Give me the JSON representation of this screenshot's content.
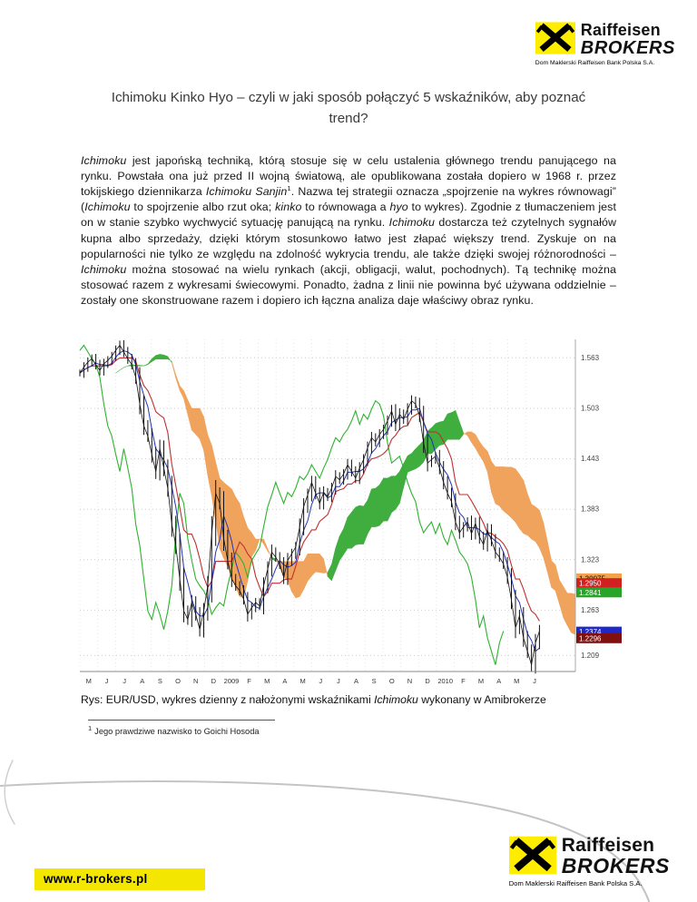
{
  "header": {
    "brand_name": "Raiffeisen",
    "brand_sub": "BROKERS",
    "brand_tagline": "Dom Maklerski Raiffeisen Bank Polska S.A."
  },
  "title": "Ichimoku Kinko Hyo – czyli w jaki sposób połączyć 5 wskaźników, aby poznać trend?",
  "body": {
    "segments": [
      {
        "t": "Ichimoku",
        "i": true
      },
      {
        "t": " jest japońską techniką, którą stosuje się w celu ustalenia głównego trendu panującego na rynku. Powstała ona już przed II wojną światową, ale opublikowana została dopiero w 1968 r. przez tokijskiego dziennikarza "
      },
      {
        "t": "Ichimoku Sanjin",
        "i": true
      },
      {
        "t": "1",
        "sup": true
      },
      {
        "t": ". Nazwa tej strategii oznacza „spojrzenie na wykres równowagi” ("
      },
      {
        "t": "Ichimoku",
        "i": true
      },
      {
        "t": " to spojrzenie albo rzut oka; "
      },
      {
        "t": "kinko",
        "i": true
      },
      {
        "t": " to równowaga a "
      },
      {
        "t": "hyo",
        "i": true
      },
      {
        "t": " to wykres). Zgodnie z tłumaczeniem jest on w stanie szybko wychwycić sytuację panującą na rynku. "
      },
      {
        "t": "Ichimoku",
        "i": true
      },
      {
        "t": " dostarcza też czytelnych sygnałów kupna albo sprzedaży, dzięki którym stosunkowo łatwo jest złapać większy trend. Zyskuje on na popularności nie tylko ze względu na zdolność wykrycia trendu, ale także dzięki swojej różnorodności – "
      },
      {
        "t": "Ichimoku",
        "i": true
      },
      {
        "t": " można stosować na wielu rynkach (akcji, obligacji, walut, pochodnych). Tą technikę można stosować razem z wykresami świecowymi. Ponadto, żadna z linii nie powinna być używana oddzielnie – zostały one skonstruowane razem i dopiero ich łączna analiza daje właściwy obraz rynku."
      }
    ]
  },
  "figure": {
    "caption_segments": [
      {
        "t": "Rys: EUR/USD, wykres dzienny z nałożonymi wskaźnikami "
      },
      {
        "t": "Ichimoku",
        "i": true
      },
      {
        "t": " wykonany w Amibrokerze"
      }
    ]
  },
  "footnote": {
    "marker": "1",
    "text": "Jego prawdziwe nazwisko to Goichi Hosoda"
  },
  "footer": {
    "url": "www.r-brokers.pl",
    "brand_name": "Raiffeisen",
    "brand_sub": "BROKERS",
    "brand_tagline": "Dom Maklerski Raiffeisen Bank Polska S.A."
  },
  "chart_data": {
    "type": "line",
    "subtype": "candlestick-ichimoku",
    "instrument": "EUR/USD",
    "timeframe": "daily",
    "ylim": [
      1.19,
      1.585
    ],
    "y_ticks": [
      1.563,
      1.503,
      1.443,
      1.383,
      1.323,
      1.263,
      1.209
    ],
    "x_labels": [
      "M",
      "J",
      "J",
      "A",
      "S",
      "O",
      "N",
      "D",
      "2009",
      "F",
      "M",
      "A",
      "M",
      "J",
      "J",
      "A",
      "S",
      "O",
      "N",
      "D",
      "2010",
      "F",
      "M",
      "A",
      "M",
      "J"
    ],
    "close": [
      1.545,
      1.552,
      1.558,
      1.562,
      1.555,
      1.548,
      1.556,
      1.56,
      1.565,
      1.572,
      1.578,
      1.57,
      1.562,
      1.555,
      1.54,
      1.508,
      1.482,
      1.47,
      1.448,
      1.428,
      1.455,
      1.432,
      1.408,
      1.365,
      1.34,
      1.3,
      1.262,
      1.252,
      1.272,
      1.258,
      1.24,
      1.262,
      1.292,
      1.355,
      1.402,
      1.39,
      1.348,
      1.322,
      1.3,
      1.292,
      1.286,
      1.276,
      1.258,
      1.266,
      1.272,
      1.268,
      1.292,
      1.312,
      1.332,
      1.326,
      1.318,
      1.302,
      1.322,
      1.33,
      1.338,
      1.362,
      1.386,
      1.4,
      1.415,
      1.402,
      1.39,
      1.403,
      1.398,
      1.408,
      1.422,
      1.418,
      1.425,
      1.436,
      1.428,
      1.42,
      1.432,
      1.442,
      1.456,
      1.468,
      1.463,
      1.472,
      1.478,
      1.488,
      1.5,
      1.484,
      1.496,
      1.49,
      1.502,
      1.512,
      1.508,
      1.494,
      1.462,
      1.438,
      1.442,
      1.446,
      1.432,
      1.415,
      1.402,
      1.392,
      1.368,
      1.355,
      1.362,
      1.368,
      1.354,
      1.366,
      1.35,
      1.341,
      1.358,
      1.346,
      1.332,
      1.326,
      1.318,
      1.302,
      1.275,
      1.242,
      1.256,
      1.23,
      1.214,
      1.198,
      1.224,
      1.238
    ],
    "ichimoku_params": {
      "tenkan": 4,
      "kijun": 9,
      "senkou_b": 18,
      "shift": 9
    },
    "price_tags": [
      {
        "label": "1.30075",
        "color": "#f2a14c",
        "text": "#000"
      },
      {
        "label": "1.2950",
        "color": "#d02020",
        "text": "#fff"
      },
      {
        "label": "1.2841",
        "color": "#28a428",
        "text": "#fff"
      },
      {
        "label": "1.2374",
        "color": "#2028c8",
        "text": "#fff"
      },
      {
        "label": "1.2296",
        "color": "#801010",
        "text": "#fff"
      }
    ],
    "colors": {
      "cloud_bull": "#3fae3f",
      "cloud_bear": "#f0a35c",
      "chikou": "#2db32d",
      "tenkan": "#2233bb",
      "kijun": "#c03030",
      "price": "#111111"
    }
  }
}
